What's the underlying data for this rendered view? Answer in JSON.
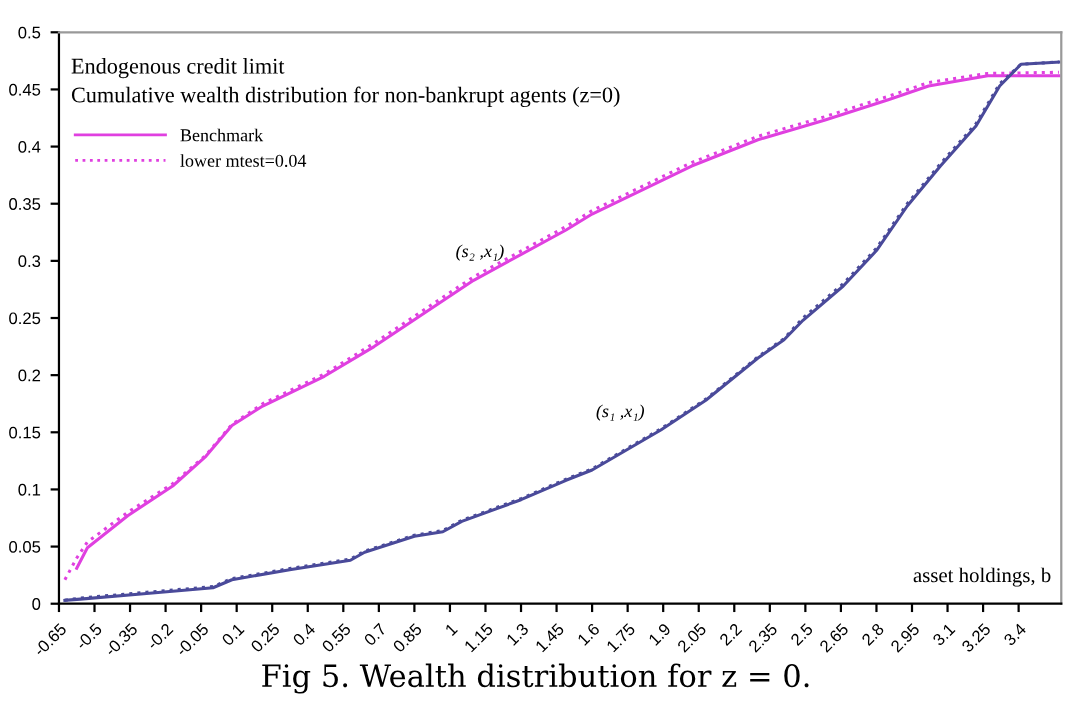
{
  "chart_data": {
    "type": "line",
    "title": "Endogenous credit limit",
    "subtitle": "Cumulative wealth distribution for non-bankrupt agents (z=0)",
    "xlabel": "asset holdings, b",
    "annotations": [
      "(s₂ ,x₁)",
      "(s₁ ,x₁)",
      "Fig 5. Wealth distribution for z = 0."
    ],
    "series": [
      {
        "name": "Benchmark",
        "color": "#e040e0",
        "line_style": "solid",
        "x": [
          -0.575,
          -0.53,
          -0.36,
          -0.17,
          -0.03,
          0.08,
          0.21,
          0.47,
          0.68,
          1.1,
          1.49,
          1.6,
          2.02,
          2.3,
          2.58,
          2.85,
          3.02,
          3.27,
          3.57
        ],
        "values": [
          0.031,
          0.049,
          0.077,
          0.103,
          0.129,
          0.156,
          0.173,
          0.199,
          0.225,
          0.283,
          0.327,
          0.341,
          0.383,
          0.406,
          0.423,
          0.441,
          0.453,
          0.462,
          0.462
        ]
      },
      {
        "name": "lower mtest=0.04",
        "color": "#e040e0",
        "line_style": "dotted",
        "x": [
          -0.625,
          -0.575,
          -0.53,
          -0.36,
          -0.17,
          -0.03,
          0.08,
          0.21,
          0.47,
          0.68,
          1.1,
          1.49,
          1.6,
          2.02,
          2.3,
          2.58,
          2.85,
          3.02,
          3.27,
          3.57
        ],
        "values": [
          0.021,
          0.04,
          0.054,
          0.08,
          0.105,
          0.13,
          0.157,
          0.175,
          0.201,
          0.228,
          0.286,
          0.33,
          0.344,
          0.386,
          0.409,
          0.426,
          0.444,
          0.456,
          0.464,
          0.465
        ]
      },
      {
        "color": "#4a4a9a",
        "line_style": "solid",
        "x": [
          -0.625,
          -0.56,
          -0.28,
          0.0,
          0.08,
          0.33,
          0.58,
          0.64,
          0.85,
          0.97,
          1.05,
          1.3,
          1.49,
          1.6,
          1.89,
          2.08,
          2.3,
          2.41,
          2.49,
          2.66,
          2.8,
          2.93,
          3.07,
          3.22,
          3.32,
          3.41,
          3.57
        ],
        "values": [
          0.003,
          0.004,
          0.009,
          0.014,
          0.021,
          0.03,
          0.038,
          0.045,
          0.059,
          0.063,
          0.072,
          0.091,
          0.108,
          0.117,
          0.152,
          0.178,
          0.215,
          0.231,
          0.248,
          0.278,
          0.309,
          0.348,
          0.383,
          0.418,
          0.453,
          0.472,
          0.474
        ]
      },
      {
        "color": "#4a4a9a",
        "line_style": "dotted",
        "x": [
          -0.625,
          -0.56,
          -0.28,
          0.0,
          0.08,
          0.33,
          0.58,
          0.64,
          0.85,
          0.97,
          1.05,
          1.3,
          1.49,
          1.6,
          1.89,
          2.08,
          2.3,
          2.41,
          2.49,
          2.66,
          2.8,
          2.93,
          3.07,
          3.22,
          3.32,
          3.41,
          3.57
        ],
        "values": [
          0.003,
          0.005,
          0.01,
          0.015,
          0.022,
          0.031,
          0.039,
          0.046,
          0.06,
          0.064,
          0.073,
          0.092,
          0.109,
          0.118,
          0.153,
          0.179,
          0.216,
          0.232,
          0.25,
          0.28,
          0.311,
          0.35,
          0.385,
          0.42,
          0.455,
          0.472,
          0.474
        ]
      }
    ],
    "xlim": [
      -0.65,
      3.58
    ],
    "ylim": [
      0,
      0.5
    ],
    "xticks": [
      -0.65,
      -0.5,
      -0.35,
      -0.2,
      -0.05,
      0.1,
      0.25,
      0.4,
      0.55,
      0.7,
      0.85,
      1,
      1.15,
      1.3,
      1.45,
      1.6,
      1.75,
      1.9,
      2.05,
      2.2,
      2.35,
      2.5,
      2.65,
      2.8,
      2.95,
      3.1,
      3.25,
      3.4
    ],
    "yticks": [
      0,
      0.05,
      0.1,
      0.15,
      0.2,
      0.25,
      0.3,
      0.35,
      0.4,
      0.45,
      0.5
    ],
    "legend": "top left",
    "grid": false,
    "marker": "none"
  }
}
